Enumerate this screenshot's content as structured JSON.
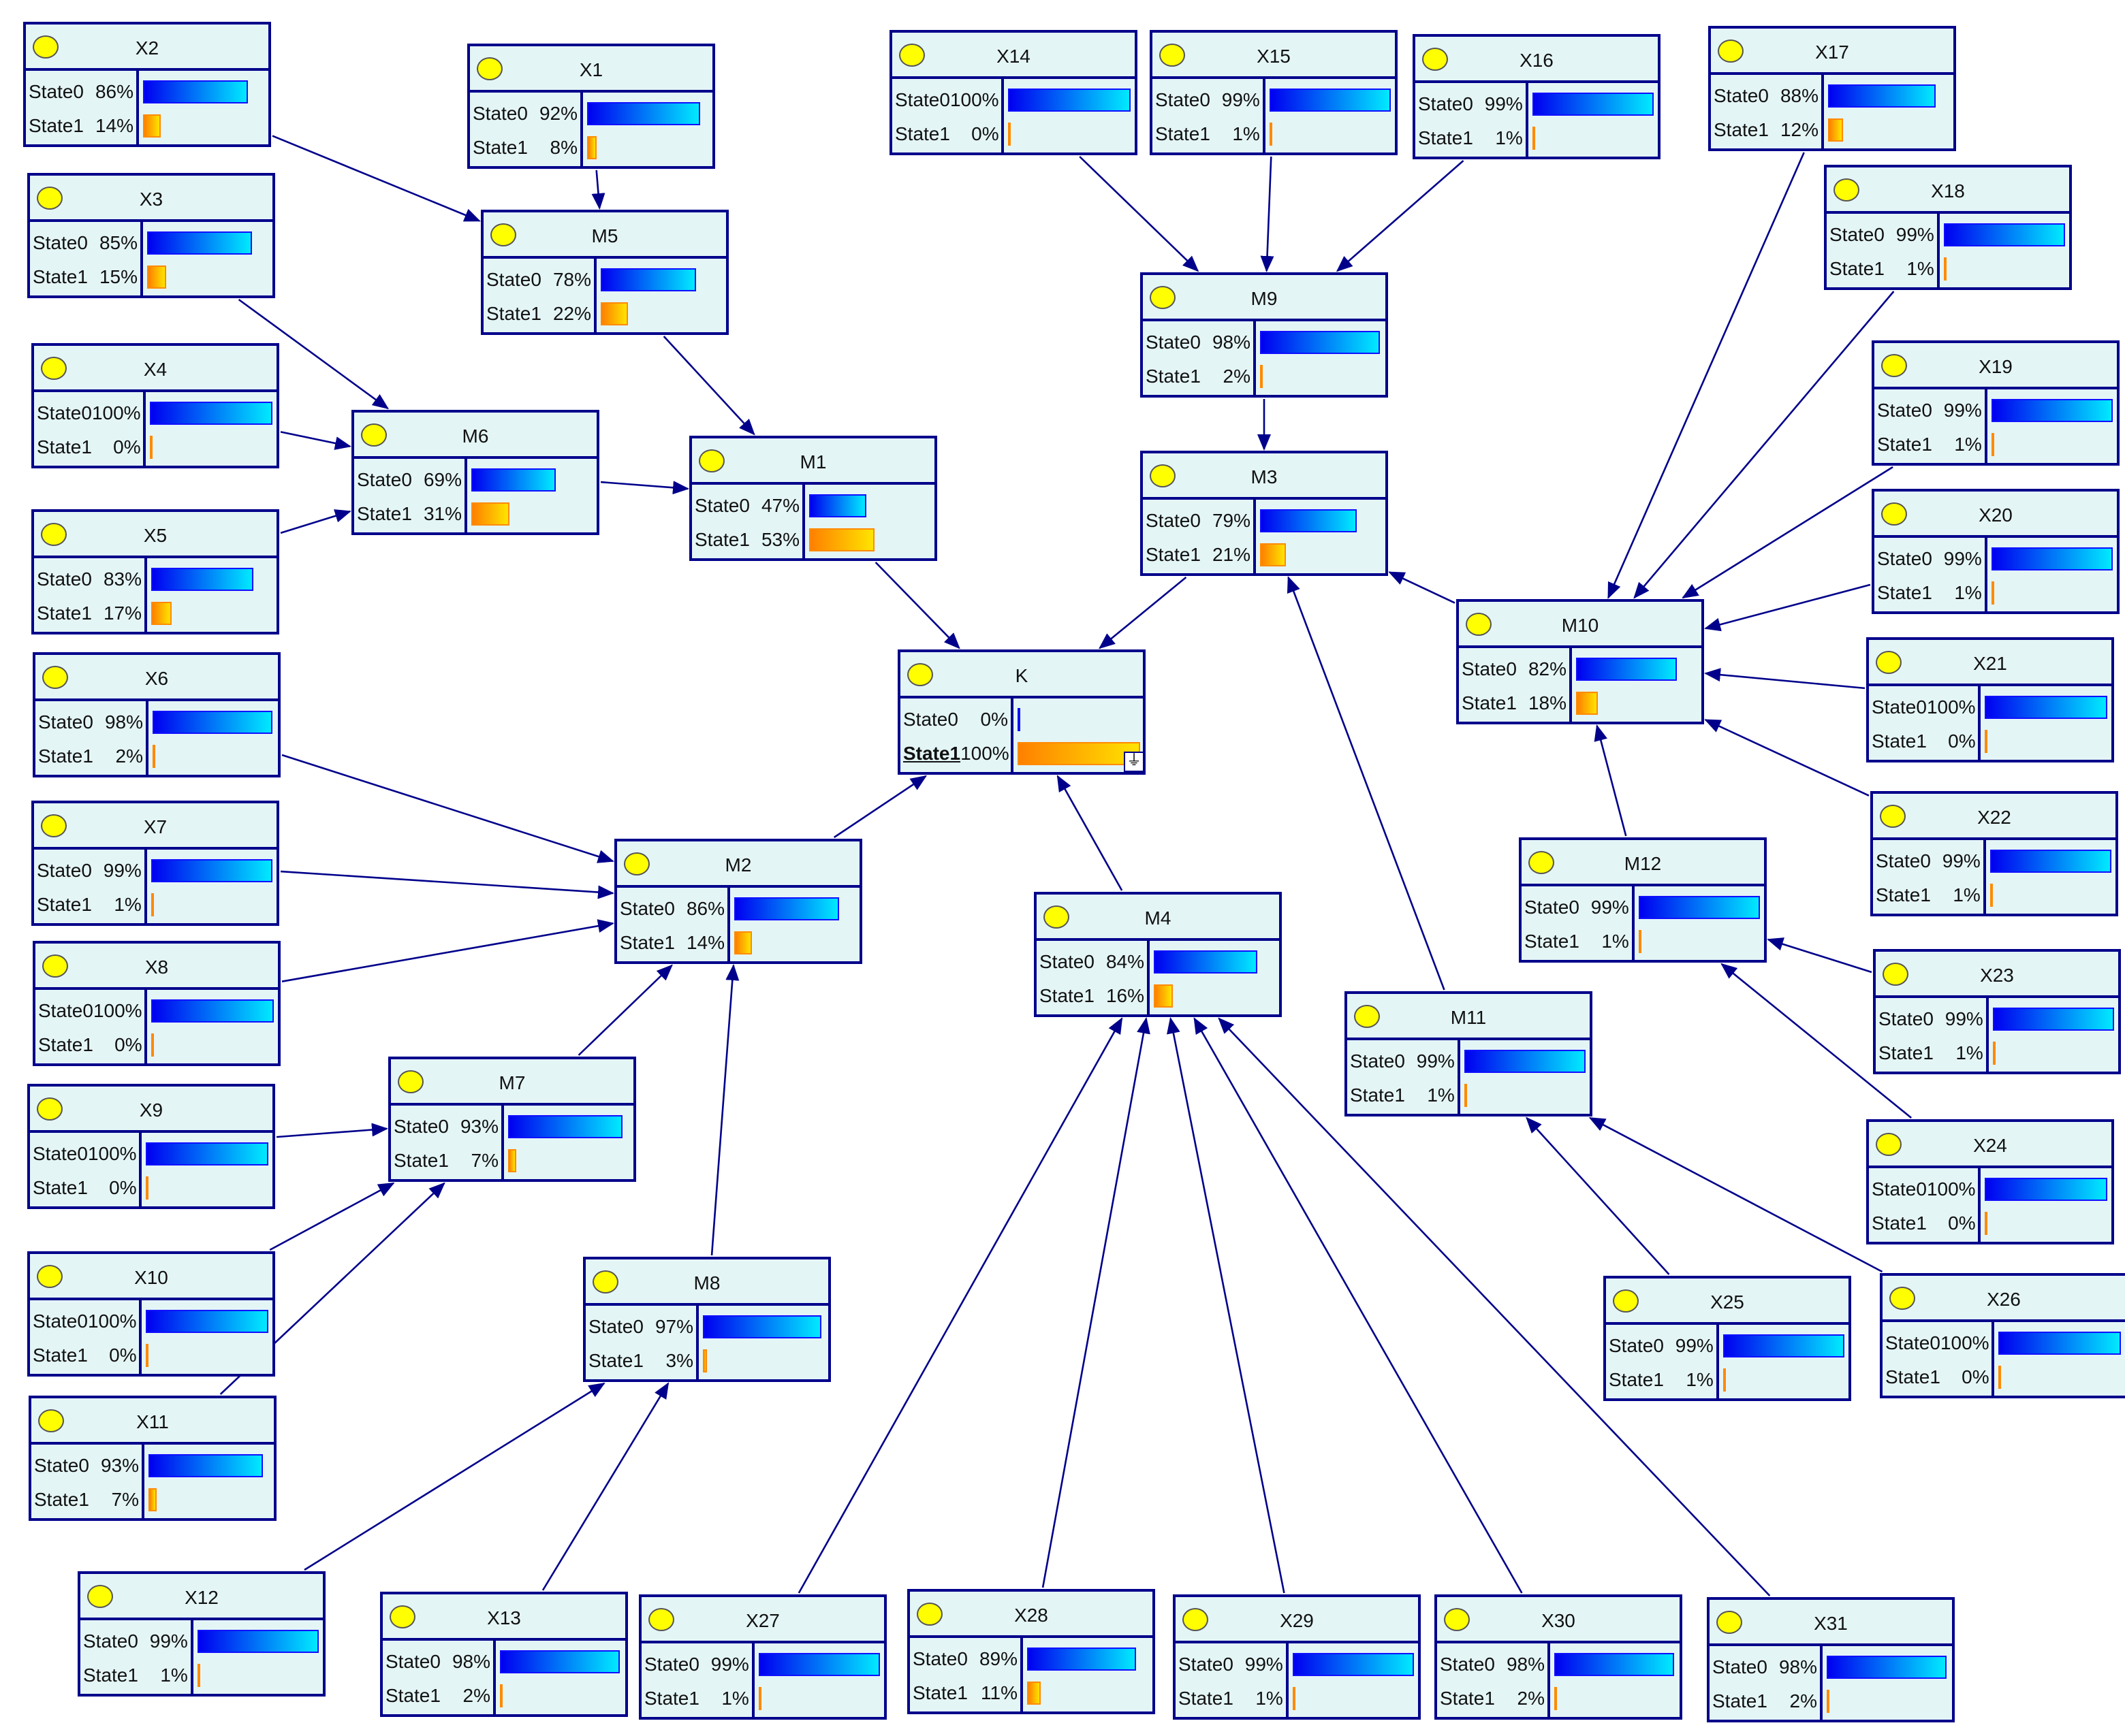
{
  "colors": {
    "node_fill": "#e4f5f6",
    "node_border": "#00008b",
    "edge": "#00008b",
    "state0_bar": "#0000f0",
    "state1_bar": "#ff8000",
    "node_icon": "#ffff00"
  },
  "nodes": [
    {
      "id": "X2",
      "states": [
        {
          "label": "State0",
          "value": "86%"
        },
        {
          "label": "State1",
          "value": "14%"
        }
      ]
    },
    {
      "id": "X1",
      "states": [
        {
          "label": "State0",
          "value": "92%"
        },
        {
          "label": "State1",
          "value": "8%"
        }
      ]
    },
    {
      "id": "X3",
      "states": [
        {
          "label": "State0",
          "value": "85%"
        },
        {
          "label": "State1",
          "value": "15%"
        }
      ]
    },
    {
      "id": "M5",
      "states": [
        {
          "label": "State0",
          "value": "78%"
        },
        {
          "label": "State1",
          "value": "22%"
        }
      ]
    },
    {
      "id": "X4",
      "states": [
        {
          "label": "State0",
          "value": "100%"
        },
        {
          "label": "State1",
          "value": "0%"
        }
      ]
    },
    {
      "id": "M6",
      "states": [
        {
          "label": "State0",
          "value": "69%"
        },
        {
          "label": "State1",
          "value": "31%"
        }
      ]
    },
    {
      "id": "M1",
      "states": [
        {
          "label": "State0",
          "value": "47%"
        },
        {
          "label": "State1",
          "value": "53%"
        }
      ]
    },
    {
      "id": "X5",
      "states": [
        {
          "label": "State0",
          "value": "83%"
        },
        {
          "label": "State1",
          "value": "17%"
        }
      ]
    },
    {
      "id": "X6",
      "states": [
        {
          "label": "State0",
          "value": "98%"
        },
        {
          "label": "State1",
          "value": "2%"
        }
      ]
    },
    {
      "id": "K",
      "evidence": "State1",
      "states": [
        {
          "label": "State0",
          "value": "0%"
        },
        {
          "label": "State1",
          "value": "100%"
        }
      ]
    },
    {
      "id": "X7",
      "states": [
        {
          "label": "State0",
          "value": "99%"
        },
        {
          "label": "State1",
          "value": "1%"
        }
      ]
    },
    {
      "id": "M2",
      "states": [
        {
          "label": "State0",
          "value": "86%"
        },
        {
          "label": "State1",
          "value": "14%"
        }
      ]
    },
    {
      "id": "X8",
      "states": [
        {
          "label": "State0",
          "value": "100%"
        },
        {
          "label": "State1",
          "value": "0%"
        }
      ]
    },
    {
      "id": "M7",
      "states": [
        {
          "label": "State0",
          "value": "93%"
        },
        {
          "label": "State1",
          "value": "7%"
        }
      ]
    },
    {
      "id": "X9",
      "states": [
        {
          "label": "State0",
          "value": "100%"
        },
        {
          "label": "State1",
          "value": "0%"
        }
      ]
    },
    {
      "id": "X10",
      "states": [
        {
          "label": "State0",
          "value": "100%"
        },
        {
          "label": "State1",
          "value": "0%"
        }
      ]
    },
    {
      "id": "M8",
      "states": [
        {
          "label": "State0",
          "value": "97%"
        },
        {
          "label": "State1",
          "value": "3%"
        }
      ]
    },
    {
      "id": "X11",
      "states": [
        {
          "label": "State0",
          "value": "93%"
        },
        {
          "label": "State1",
          "value": "7%"
        }
      ]
    },
    {
      "id": "X12",
      "states": [
        {
          "label": "State0",
          "value": "99%"
        },
        {
          "label": "State1",
          "value": "1%"
        }
      ]
    },
    {
      "id": "X13",
      "states": [
        {
          "label": "State0",
          "value": "98%"
        },
        {
          "label": "State1",
          "value": "2%"
        }
      ]
    },
    {
      "id": "X27",
      "states": [
        {
          "label": "State0",
          "value": "99%"
        },
        {
          "label": "State1",
          "value": "1%"
        }
      ]
    },
    {
      "id": "X28",
      "states": [
        {
          "label": "State0",
          "value": "89%"
        },
        {
          "label": "State1",
          "value": "11%"
        }
      ]
    },
    {
      "id": "X29",
      "states": [
        {
          "label": "State0",
          "value": "99%"
        },
        {
          "label": "State1",
          "value": "1%"
        }
      ]
    },
    {
      "id": "X30",
      "states": [
        {
          "label": "State0",
          "value": "98%"
        },
        {
          "label": "State1",
          "value": "2%"
        }
      ]
    },
    {
      "id": "X31",
      "states": [
        {
          "label": "State0",
          "value": "98%"
        },
        {
          "label": "State1",
          "value": "2%"
        }
      ]
    },
    {
      "id": "X14",
      "states": [
        {
          "label": "State0",
          "value": "100%"
        },
        {
          "label": "State1",
          "value": "0%"
        }
      ]
    },
    {
      "id": "X15",
      "states": [
        {
          "label": "State0",
          "value": "99%"
        },
        {
          "label": "State1",
          "value": "1%"
        }
      ]
    },
    {
      "id": "X16",
      "states": [
        {
          "label": "State0",
          "value": "99%"
        },
        {
          "label": "State1",
          "value": "1%"
        }
      ]
    },
    {
      "id": "X17",
      "states": [
        {
          "label": "State0",
          "value": "88%"
        },
        {
          "label": "State1",
          "value": "12%"
        }
      ]
    },
    {
      "id": "X18",
      "states": [
        {
          "label": "State0",
          "value": "99%"
        },
        {
          "label": "State1",
          "value": "1%"
        }
      ]
    },
    {
      "id": "M9",
      "states": [
        {
          "label": "State0",
          "value": "98%"
        },
        {
          "label": "State1",
          "value": "2%"
        }
      ]
    },
    {
      "id": "X19",
      "states": [
        {
          "label": "State0",
          "value": "99%"
        },
        {
          "label": "State1",
          "value": "1%"
        }
      ]
    },
    {
      "id": "M3",
      "states": [
        {
          "label": "State0",
          "value": "79%"
        },
        {
          "label": "State1",
          "value": "21%"
        }
      ]
    },
    {
      "id": "X20",
      "states": [
        {
          "label": "State0",
          "value": "99%"
        },
        {
          "label": "State1",
          "value": "1%"
        }
      ]
    },
    {
      "id": "M10",
      "states": [
        {
          "label": "State0",
          "value": "82%"
        },
        {
          "label": "State1",
          "value": "18%"
        }
      ]
    },
    {
      "id": "X21",
      "states": [
        {
          "label": "State0",
          "value": "100%"
        },
        {
          "label": "State1",
          "value": "0%"
        }
      ]
    },
    {
      "id": "X22",
      "states": [
        {
          "label": "State0",
          "value": "99%"
        },
        {
          "label": "State1",
          "value": "1%"
        }
      ]
    },
    {
      "id": "M12",
      "states": [
        {
          "label": "State0",
          "value": "99%"
        },
        {
          "label": "State1",
          "value": "1%"
        }
      ]
    },
    {
      "id": "M4",
      "states": [
        {
          "label": "State0",
          "value": "84%"
        },
        {
          "label": "State1",
          "value": "16%"
        }
      ]
    },
    {
      "id": "X23",
      "states": [
        {
          "label": "State0",
          "value": "99%"
        },
        {
          "label": "State1",
          "value": "1%"
        }
      ]
    },
    {
      "id": "M11",
      "states": [
        {
          "label": "State0",
          "value": "99%"
        },
        {
          "label": "State1",
          "value": "1%"
        }
      ]
    },
    {
      "id": "X24",
      "states": [
        {
          "label": "State0",
          "value": "100%"
        },
        {
          "label": "State1",
          "value": "0%"
        }
      ]
    },
    {
      "id": "X25",
      "states": [
        {
          "label": "State0",
          "value": "99%"
        },
        {
          "label": "State1",
          "value": "1%"
        }
      ]
    },
    {
      "id": "X26",
      "states": [
        {
          "label": "State0",
          "value": "100%"
        },
        {
          "label": "State1",
          "value": "0%"
        }
      ]
    }
  ],
  "edges": [
    [
      "X2",
      "M5"
    ],
    [
      "X1",
      "M5"
    ],
    [
      "X3",
      "M6"
    ],
    [
      "X4",
      "M6"
    ],
    [
      "X5",
      "M6"
    ],
    [
      "M5",
      "M1"
    ],
    [
      "M6",
      "M1"
    ],
    [
      "M1",
      "K"
    ],
    [
      "M3",
      "K"
    ],
    [
      "M2",
      "K"
    ],
    [
      "M4",
      "K"
    ],
    [
      "X6",
      "M2"
    ],
    [
      "X7",
      "M2"
    ],
    [
      "X8",
      "M2"
    ],
    [
      "M7",
      "M2"
    ],
    [
      "M8",
      "M2"
    ],
    [
      "X9",
      "M7"
    ],
    [
      "X10",
      "M7"
    ],
    [
      "X11",
      "M7"
    ],
    [
      "X12",
      "M8"
    ],
    [
      "X13",
      "M8"
    ],
    [
      "X27",
      "M4"
    ],
    [
      "X28",
      "M4"
    ],
    [
      "X29",
      "M4"
    ],
    [
      "X30",
      "M4"
    ],
    [
      "X31",
      "M4"
    ],
    [
      "X14",
      "M9"
    ],
    [
      "X15",
      "M9"
    ],
    [
      "X16",
      "M9"
    ],
    [
      "M9",
      "M3"
    ],
    [
      "M10",
      "M3"
    ],
    [
      "M11",
      "M3"
    ],
    [
      "X17",
      "M10"
    ],
    [
      "X18",
      "M10"
    ],
    [
      "X19",
      "M10"
    ],
    [
      "X20",
      "M10"
    ],
    [
      "X21",
      "M10"
    ],
    [
      "X22",
      "M10"
    ],
    [
      "M12",
      "M10"
    ],
    [
      "X23",
      "M12"
    ],
    [
      "X24",
      "M12"
    ],
    [
      "X25",
      "M11"
    ],
    [
      "X26",
      "M11"
    ]
  ]
}
